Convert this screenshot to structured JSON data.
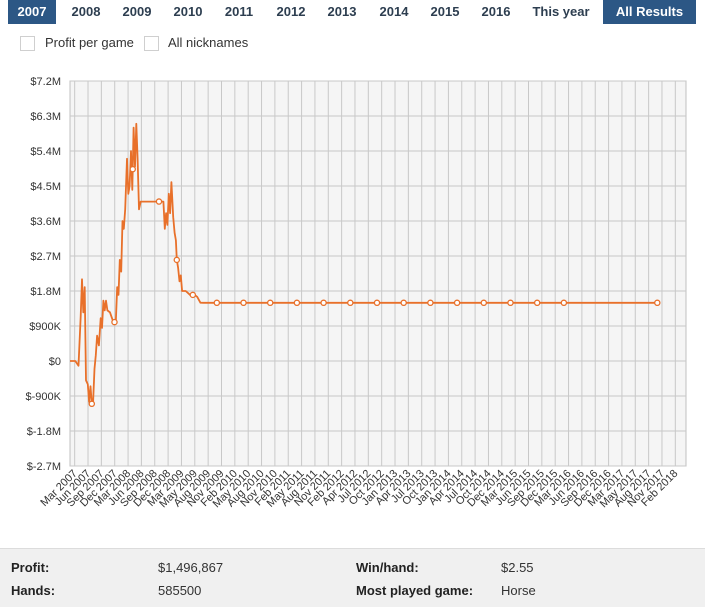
{
  "tabs": [
    {
      "label": "2007",
      "active": true
    },
    {
      "label": "2008",
      "active": false
    },
    {
      "label": "2009",
      "active": false
    },
    {
      "label": "2010",
      "active": false
    },
    {
      "label": "2011",
      "active": false
    },
    {
      "label": "2012",
      "active": false
    },
    {
      "label": "2013",
      "active": false
    },
    {
      "label": "2014",
      "active": false
    },
    {
      "label": "2015",
      "active": false
    },
    {
      "label": "2016",
      "active": false
    },
    {
      "label": "This year",
      "active": false
    },
    {
      "label": "All Results",
      "active": true
    }
  ],
  "filters": {
    "profit_per_game": {
      "label": "Profit per game",
      "checked": false
    },
    "all_nicknames": {
      "label": "All nicknames",
      "checked": false
    }
  },
  "colors": {
    "line": "#e8702a",
    "tab_active": "#2c5785",
    "grid": "#c8c8c8",
    "plot_bg": "#f5f5f5"
  },
  "chart_data": {
    "type": "line",
    "title": "",
    "xlabel": "",
    "ylabel": "",
    "ylim": [
      -2700000,
      7200000
    ],
    "y_ticks": [
      -2700000,
      -1800000,
      -900000,
      0,
      900000,
      1800000,
      2700000,
      3600000,
      4500000,
      5400000,
      6300000,
      7200000
    ],
    "y_tick_labels": [
      "$-2.7M",
      "$-1.8M",
      "$-900K",
      "$0",
      "$900K",
      "$1.8M",
      "$2.7M",
      "$3.6M",
      "$4.5M",
      "$5.4M",
      "$6.3M",
      "$7.2M"
    ],
    "x_tick_labels": [
      "Mar 2007",
      "Jun 2007",
      "Sep 2007",
      "Dec 2007",
      "Mar 2008",
      "Jun 2008",
      "Sep 2008",
      "Dec 2008",
      "Mar 2009",
      "May 2009",
      "Aug 2009",
      "Nov 2009",
      "Feb 2010",
      "May 2010",
      "Aug 2010",
      "Nov 2010",
      "Feb 2011",
      "May 2011",
      "Aug 2011",
      "Nov 2011",
      "Feb 2012",
      "Apr 2012",
      "Jul 2012",
      "Oct 2012",
      "Jan 2013",
      "Apr 2013",
      "Jul 2013",
      "Oct 2013",
      "Jan 2014",
      "Apr 2014",
      "Jul 2014",
      "Oct 2014",
      "Dec 2014",
      "Mar 2015",
      "Jun 2015",
      "Sep 2015",
      "Dec 2015",
      "Mar 2016",
      "Jun 2016",
      "Sep 2016",
      "Dec 2016",
      "Mar 2017",
      "May 2017",
      "Aug 2017",
      "Nov 2017",
      "Feb 2018"
    ],
    "grid": true,
    "legend": "none",
    "series": [
      {
        "values": [
          [
            0,
            0
          ],
          [
            1.2,
            0
          ],
          [
            1.9,
            -120000
          ],
          [
            2.4,
            1150000
          ],
          [
            2.7,
            2100000
          ],
          [
            3.0,
            1250000
          ],
          [
            3.3,
            1900000
          ],
          [
            3.6,
            -500000
          ],
          [
            4.0,
            -600000
          ],
          [
            4.3,
            -1050000
          ],
          [
            4.6,
            -650000
          ],
          [
            4.9,
            -1100000
          ],
          [
            5.2,
            -1050000
          ],
          [
            5.5,
            -200000
          ],
          [
            5.8,
            150000
          ],
          [
            6.1,
            650000
          ],
          [
            6.5,
            400000
          ],
          [
            6.9,
            1100000
          ],
          [
            7.2,
            850000
          ],
          [
            7.5,
            1550000
          ],
          [
            7.8,
            1300000
          ],
          [
            8.1,
            1550000
          ],
          [
            8.4,
            1300000
          ],
          [
            9.0,
            1250000
          ],
          [
            9.6,
            1050000
          ],
          [
            10.0,
            1000000
          ],
          [
            10.3,
            1000000
          ],
          [
            10.6,
            1900000
          ],
          [
            10.9,
            1700000
          ],
          [
            11.2,
            2600000
          ],
          [
            11.5,
            2300000
          ],
          [
            11.8,
            3600000
          ],
          [
            12.1,
            3400000
          ],
          [
            12.4,
            3900000
          ],
          [
            12.8,
            5200000
          ],
          [
            13.1,
            4300000
          ],
          [
            13.4,
            4500000
          ],
          [
            13.7,
            5400000
          ],
          [
            14.0,
            4400000
          ],
          [
            14.3,
            6000000
          ],
          [
            14.6,
            5000000
          ],
          [
            14.9,
            6100000
          ],
          [
            15.2,
            5200000
          ],
          [
            15.5,
            3900000
          ],
          [
            15.9,
            4100000
          ],
          [
            17.0,
            4100000
          ],
          [
            18.0,
            4100000
          ],
          [
            19.0,
            4100000
          ],
          [
            20.0,
            4100000
          ],
          [
            21.0,
            4100000
          ],
          [
            21.3,
            3400000
          ],
          [
            21.6,
            3800000
          ],
          [
            21.9,
            3500000
          ],
          [
            22.2,
            4300000
          ],
          [
            22.5,
            3800000
          ],
          [
            22.8,
            4600000
          ],
          [
            23.2,
            3700000
          ],
          [
            23.5,
            3300000
          ],
          [
            23.8,
            3100000
          ],
          [
            24.0,
            2600000
          ],
          [
            24.3,
            2400000
          ],
          [
            24.6,
            2050000
          ],
          [
            24.9,
            2200000
          ],
          [
            25.2,
            1800000
          ],
          [
            26.0,
            1800000
          ],
          [
            26.5,
            1750000
          ],
          [
            27.0,
            1700000
          ],
          [
            27.2,
            1720000
          ],
          [
            27.6,
            1700000
          ],
          [
            28.0,
            1700000
          ],
          [
            28.6,
            1650000
          ],
          [
            29.3,
            1500000
          ],
          [
            30.0,
            1497000
          ],
          [
            33.0,
            1497000
          ],
          [
            36.0,
            1497000
          ],
          [
            39.0,
            1497000
          ],
          [
            42.0,
            1497000
          ],
          [
            45.0,
            1497000
          ],
          [
            48.0,
            1497000
          ],
          [
            51.0,
            1497000
          ],
          [
            54.0,
            1497000
          ],
          [
            57.0,
            1497000
          ],
          [
            60.0,
            1497000
          ],
          [
            63.0,
            1497000
          ],
          [
            66.0,
            1497000
          ],
          [
            69.0,
            1497000
          ],
          [
            72.0,
            1497000
          ],
          [
            75.0,
            1497000
          ],
          [
            78.0,
            1497000
          ],
          [
            81.0,
            1497000
          ],
          [
            84.0,
            1497000
          ],
          [
            87.0,
            1497000
          ],
          [
            90.0,
            1497000
          ],
          [
            93.0,
            1497000
          ],
          [
            96.0,
            1497000
          ],
          [
            99.0,
            1497000
          ],
          [
            102.0,
            1497000
          ],
          [
            105.0,
            1497000
          ],
          [
            108.0,
            1497000
          ],
          [
            111.0,
            1497000
          ],
          [
            132.0,
            1497000
          ]
        ]
      }
    ],
    "markers_at_x": [
      4.9,
      10.0,
      14.1,
      20.0,
      24.0,
      27.6,
      33.0,
      39.0,
      45.0,
      51.0,
      57.0,
      63.0,
      69.0,
      75.0,
      81.0,
      87.0,
      93.0,
      99.0,
      105.0,
      111.0,
      132.0
    ]
  },
  "stats": {
    "profit_label": "Profit:",
    "profit_value": "$1,496,867",
    "hands_label": "Hands:",
    "hands_value": "585500",
    "winhand_label": "Win/hand:",
    "winhand_value": "$2.55",
    "mostplayed_label": "Most played game:",
    "mostplayed_value": "Horse"
  }
}
